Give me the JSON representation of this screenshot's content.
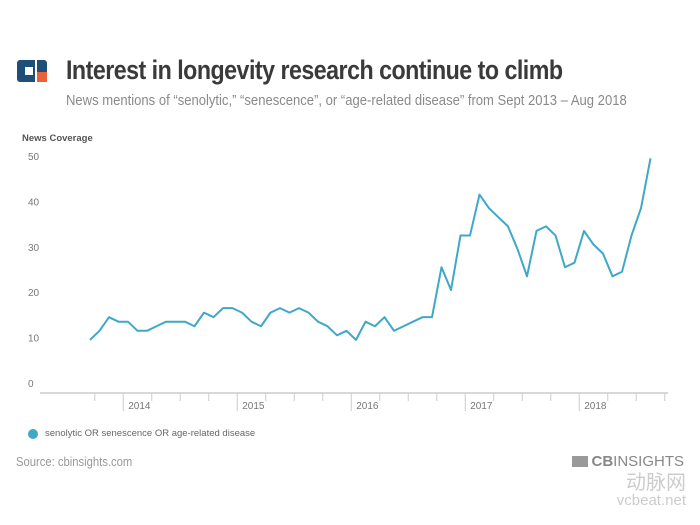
{
  "header": {
    "title": "Interest in longevity research continue to climb",
    "subtitle": "News mentions of “senolytic,” “senescence”, or “age-related disease” from Sept 2013 – Aug 2018",
    "logo": "CB Insights logo"
  },
  "chart_data": {
    "type": "line",
    "title": "Interest in longevity research continue to climb",
    "ylabel": "News Coverage",
    "xlabel": "",
    "ylim": [
      0,
      50
    ],
    "yticks": [
      0,
      10,
      20,
      30,
      40,
      50
    ],
    "xtick_labels": [
      "2014",
      "2015",
      "2016",
      "2017",
      "2018"
    ],
    "x_start": "2013-09",
    "x_end": "2018-08",
    "x_interval": "monthly",
    "grid": false,
    "legend_placement": "bottom-left",
    "series": [
      {
        "name": "senolytic OR senescence OR age-related disease",
        "color": "#3fa8c9",
        "values": [
          9.5,
          11.5,
          14.5,
          13.5,
          13.5,
          11.5,
          11.5,
          12.5,
          13.5,
          13.5,
          13.5,
          12.5,
          15.5,
          14.5,
          16.5,
          16.5,
          15.5,
          13.5,
          12.5,
          15.5,
          16.5,
          15.5,
          16.5,
          15.5,
          13.5,
          12.5,
          10.5,
          11.5,
          9.5,
          13.5,
          12.5,
          14.5,
          11.5,
          12.5,
          13.5,
          14.5,
          14.5,
          25.5,
          20.5,
          32.5,
          32.5,
          41.5,
          38.5,
          36.5,
          34.5,
          29.5,
          23.5,
          33.5,
          34.5,
          32.5,
          25.5,
          26.5,
          33.5,
          30.5,
          28.5,
          23.5,
          24.5,
          32.5,
          38.5,
          49.5
        ]
      }
    ]
  },
  "footer": {
    "source": "Source: cbinsights.com",
    "brand_cb": "CB",
    "brand_insights": "INSIGHTS",
    "watermark_cn": "动脉网",
    "watermark_en": "vcbeat.net"
  },
  "colors": {
    "line": "#3fa8c9",
    "logo_blue": "#1f4e79",
    "logo_orange": "#e8623a"
  }
}
